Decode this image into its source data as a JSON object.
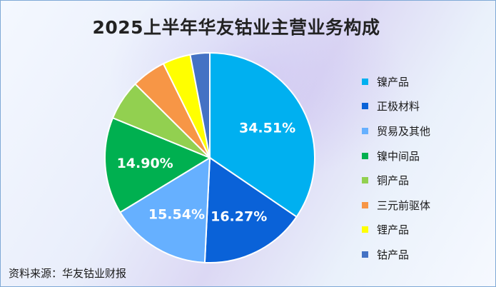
{
  "title": "2025上半年华友钴业主营业务构成",
  "source": "资料来源：华友钴业财报",
  "chart_data": {
    "type": "pie",
    "title": "2025上半年华友钴业主营业务构成",
    "categories": [
      "镍产品",
      "正极材料",
      "贸易及其他",
      "镍中间品",
      "铜产品",
      "三元前驱体",
      "锂产品",
      "钴产品"
    ],
    "values": [
      34.51,
      16.27,
      15.54,
      14.9,
      6.2,
      5.3,
      4.3,
      3.0
    ],
    "value_labels": [
      "34.51%",
      "16.27%",
      "15.54%",
      "14.90%",
      "",
      "",
      "",
      ""
    ],
    "colors": [
      "#00b0f0",
      "#0a62d8",
      "#66b0ff",
      "#00b050",
      "#92d050",
      "#f79646",
      "#ffff00",
      "#4472c4"
    ],
    "legend_position": "right"
  }
}
